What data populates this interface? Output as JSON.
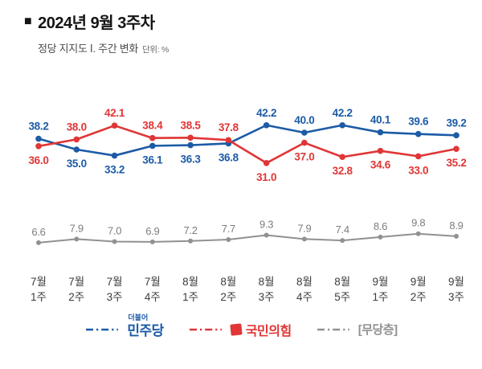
{
  "header": {
    "bullet": "■",
    "title": "2024년 9월 3주차",
    "subtitle": "정당 지지도 Ⅰ. 주간 변화",
    "unit": "단위: %"
  },
  "chart_data": {
    "type": "line",
    "title": "정당 지지도 주간 변화",
    "unit": "%",
    "grid": false,
    "legend_position": "bottom",
    "categories": [
      [
        "7월",
        "1주"
      ],
      [
        "7월",
        "2주"
      ],
      [
        "7월",
        "3주"
      ],
      [
        "7월",
        "4주"
      ],
      [
        "8월",
        "1주"
      ],
      [
        "8월",
        "2주"
      ],
      [
        "8월",
        "3주"
      ],
      [
        "8월",
        "4주"
      ],
      [
        "8월",
        "5주"
      ],
      [
        "9월",
        "1주"
      ],
      [
        "9월",
        "2주"
      ],
      [
        "9월",
        "3주"
      ]
    ],
    "series": [
      {
        "key": "minjoo",
        "name": "민주당",
        "color": "#1c5ba6",
        "values": [
          38.2,
          35.0,
          33.2,
          36.1,
          36.3,
          36.8,
          42.2,
          40.0,
          42.2,
          40.1,
          39.6,
          39.2
        ]
      },
      {
        "key": "ppp",
        "name": "국민의힘",
        "color": "#e03636",
        "values": [
          36.0,
          38.0,
          42.1,
          38.4,
          38.5,
          37.8,
          31.0,
          37.0,
          32.8,
          34.6,
          33.0,
          35.2
        ]
      },
      {
        "key": "mudang",
        "name": "무당층",
        "color": "#919191",
        "values": [
          6.6,
          7.9,
          7.0,
          6.9,
          7.2,
          7.7,
          9.3,
          7.9,
          7.4,
          8.6,
          9.8,
          8.9
        ]
      }
    ],
    "value_label_colors": {
      "minjoo": "#1c5ba6",
      "ppp": "#e03636",
      "mudang": "#7d7d7d"
    },
    "axis_label_color": "#3c3c3c",
    "legend": [
      {
        "key": "minjoo",
        "logo_top": "더불어",
        "label": "민주당"
      },
      {
        "key": "ppp",
        "label": "국민의힘"
      },
      {
        "key": "mudang",
        "label": "[무당층]"
      }
    ]
  }
}
